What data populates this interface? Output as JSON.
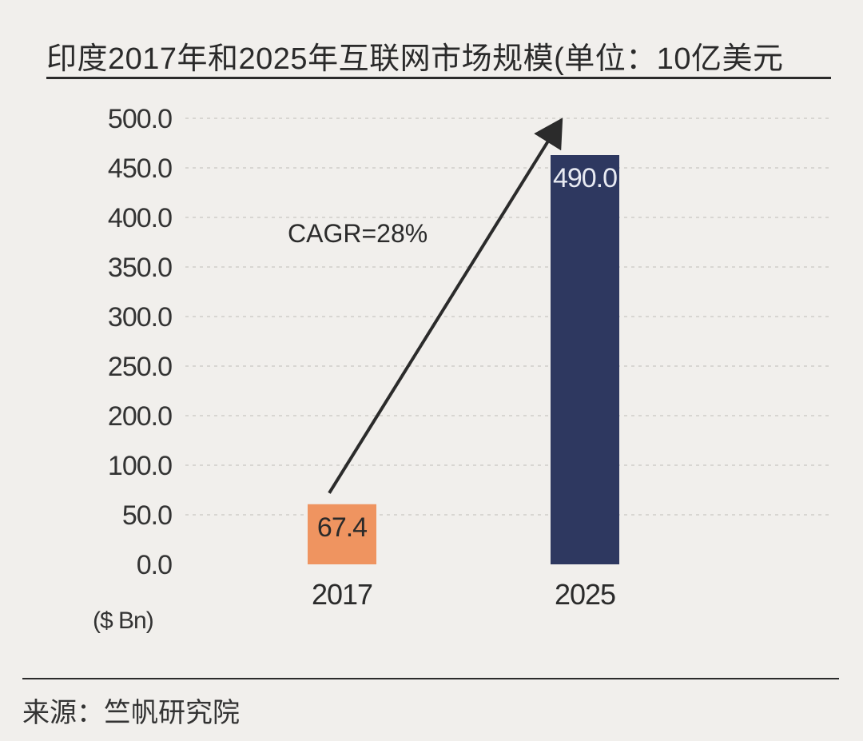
{
  "chart_data": {
    "type": "bar",
    "title": "印度2017年和2025年互联网市场规模(单位：10亿美元",
    "categories": [
      "2017",
      "2025"
    ],
    "values": [
      67.4,
      490.0
    ],
    "value_labels": [
      "67.4",
      "490.0"
    ],
    "bar_colors": [
      "#ef9460",
      "#2e3860"
    ],
    "value_label_colors": [
      "#2a2a2a",
      "#e8eaf2"
    ],
    "y_ticks": [
      "0.0",
      "50.0",
      "100.0",
      "200.0",
      "250.0",
      "300.0",
      "350.0",
      "400.0",
      "450.0",
      "500.0"
    ],
    "ylim": [
      0,
      500
    ],
    "ylabel": "($ Bn)",
    "annotation": "CAGR=28%",
    "grid": true,
    "source": "来源：竺帆研究院"
  }
}
